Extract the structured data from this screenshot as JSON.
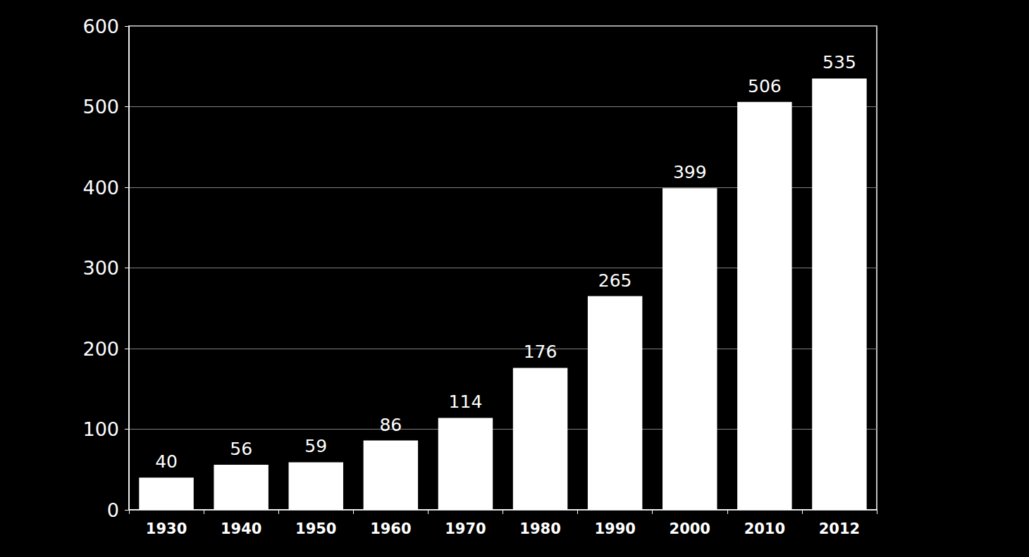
{
  "chart_data": {
    "type": "bar",
    "categories": [
      "1930",
      "1940",
      "1950",
      "1960",
      "1970",
      "1980",
      "1990",
      "2000",
      "2010",
      "2012"
    ],
    "values": [
      40,
      56,
      59,
      86,
      114,
      176,
      265,
      399,
      506,
      535
    ],
    "color": "#ffffff",
    "ylim": [
      0,
      600
    ],
    "yticks": [
      0,
      100,
      200,
      300,
      400,
      500,
      600
    ],
    "grid": true,
    "data_labels": true
  }
}
